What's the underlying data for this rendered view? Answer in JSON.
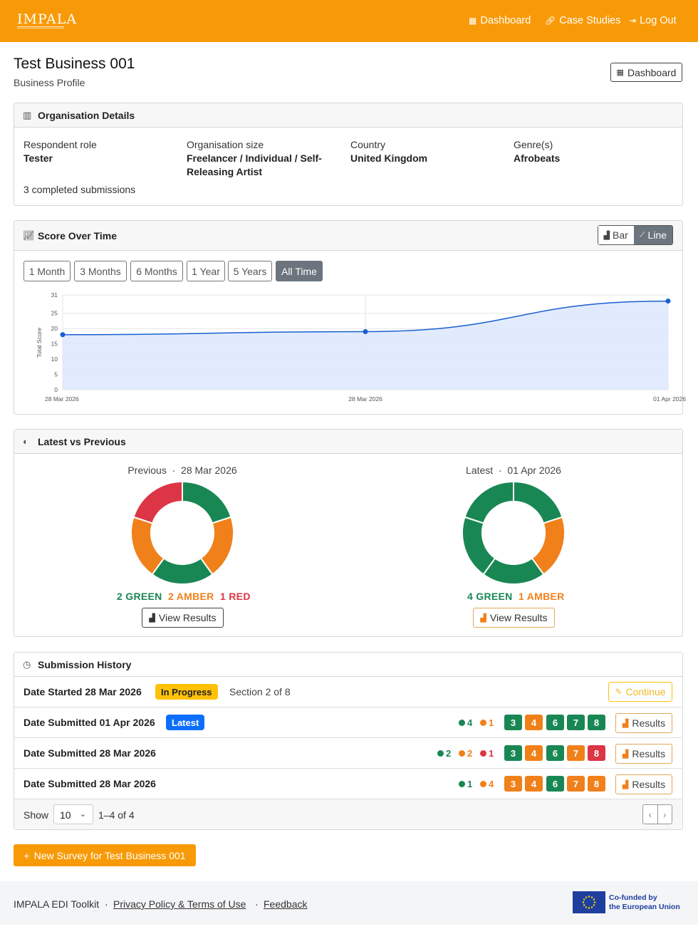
{
  "navbar": {
    "logo_text": "IMPALA",
    "links": [
      {
        "label": "Dashboard",
        "icon": "grid-icon"
      },
      {
        "label": "Case Studies",
        "icon": "link-icon"
      },
      {
        "label": "Log Out",
        "icon": "logout-icon"
      }
    ]
  },
  "header": {
    "title": "Test Business 001",
    "subtitle": "Business Profile",
    "dashboard_button": "Dashboard"
  },
  "org": {
    "heading": "Organisation Details",
    "fields": [
      {
        "label": "Respondent role",
        "value": "Tester"
      },
      {
        "label": "Organisation size",
        "value_line1": "Freelancer / Individual / Self-",
        "value_line2": "Releasing Artist"
      },
      {
        "label": "Country",
        "value": "United Kingdom"
      },
      {
        "label": "Genre(s)",
        "value": "Afrobeats"
      }
    ],
    "submissions_note": "3 completed submissions"
  },
  "score": {
    "heading": "Score Over Time",
    "view_toggle": [
      "Bar",
      "Line"
    ],
    "active_view": "Line",
    "ranges": [
      "1 Month",
      "3 Months",
      "6 Months",
      "1 Year",
      "5 Years",
      "All Time"
    ],
    "active_range": "All Time"
  },
  "chart_data": {
    "type": "area",
    "x": [
      "28 Mar 2026",
      "28 Mar 2026",
      "01 Apr 2026"
    ],
    "values": [
      18,
      19,
      29
    ],
    "ylabel": "Total Score",
    "ylim": [
      0,
      31
    ],
    "yticks": [
      0,
      5,
      10,
      15,
      20,
      25,
      31
    ],
    "grid": true,
    "line_color": "#1a5fd0",
    "fill_color": "#dce8fd"
  },
  "compare": {
    "heading": "Latest vs Previous",
    "separator": "·",
    "previous": {
      "label": "Previous",
      "date": "28 Mar 2026",
      "counts": {
        "green": "2 GREEN",
        "amber": "2 AMBER",
        "red": "1 RED"
      },
      "segments": [
        "green",
        "amber",
        "green",
        "amber",
        "red"
      ],
      "button": "View Results"
    },
    "latest": {
      "label": "Latest",
      "date": "01 Apr 2026",
      "counts": {
        "green": "4 GREEN",
        "amber": "1 AMBER"
      },
      "segments": [
        "green",
        "amber",
        "green",
        "green",
        "green"
      ],
      "button": "View Results"
    }
  },
  "history": {
    "heading": "Submission History",
    "rows": [
      {
        "title": "Date Started 28 Mar 2026",
        "badge": "In Progress",
        "section": "Section 2 of 8",
        "action": "Continue"
      },
      {
        "title": "Date Submitted 01 Apr 2026",
        "badge": "Latest",
        "stats": {
          "green": "4",
          "amber": "1"
        },
        "sections": [
          [
            "3",
            "g"
          ],
          [
            "4",
            "a"
          ],
          [
            "6",
            "g"
          ],
          [
            "7",
            "g"
          ],
          [
            "8",
            "g"
          ]
        ],
        "action": "Results"
      },
      {
        "title": "Date Submitted 28 Mar 2026",
        "stats": {
          "green": "2",
          "amber": "2",
          "red": "1"
        },
        "sections": [
          [
            "3",
            "g"
          ],
          [
            "4",
            "a"
          ],
          [
            "6",
            "g"
          ],
          [
            "7",
            "a"
          ],
          [
            "8",
            "r"
          ]
        ],
        "action": "Results"
      },
      {
        "title": "Date Submitted 28 Mar 2026",
        "stats": {
          "green": "1",
          "amber": "4"
        },
        "sections": [
          [
            "3",
            "a"
          ],
          [
            "4",
            "a"
          ],
          [
            "6",
            "g"
          ],
          [
            "7",
            "a"
          ],
          [
            "8",
            "a"
          ]
        ],
        "action": "Results"
      }
    ],
    "show_label": "Show",
    "page_size": "10",
    "range_text": "1–4 of 4",
    "prev_icon": "‹",
    "next_icon": "›"
  },
  "new_survey_button": "New Survey for Test Business 001",
  "footer": {
    "name": "IMPALA EDI Toolkit",
    "sep": "·",
    "privacy": "Privacy Policy & Terms of Use",
    "feedback": "Feedback",
    "eu_line1": "Co-funded by",
    "eu_line2": "the European Union"
  },
  "colors": {
    "brand": "#f89a07",
    "green": "#198754",
    "amber": "#f0801a",
    "red": "#dc3545",
    "blue": "#0d6efd"
  }
}
